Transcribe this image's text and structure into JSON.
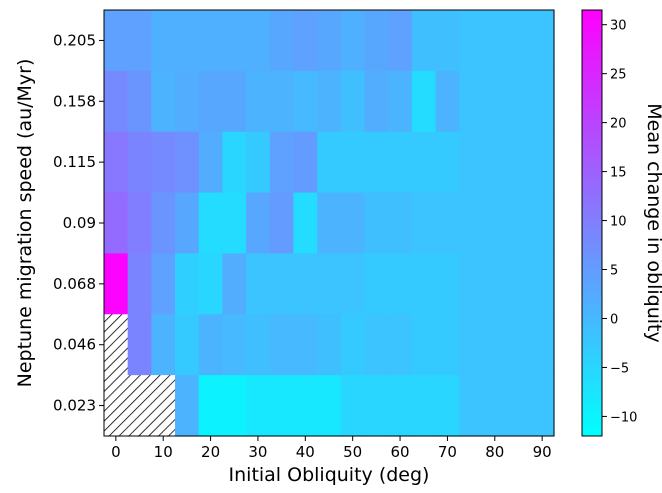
{
  "chart_data": {
    "type": "heatmap",
    "xlabel": "Initial Obliquity (deg)",
    "ylabel": "Neptune migration speed (au/Myr)",
    "colorbar_label": "Mean change in obliquity",
    "x": [
      0,
      5,
      10,
      15,
      20,
      25,
      30,
      35,
      40,
      45,
      50,
      55,
      60,
      65,
      70,
      75,
      80,
      85,
      90
    ],
    "y_rows": [
      "0.205",
      "0.158",
      "0.115",
      "0.09",
      "0.068",
      "0.046",
      "0.023"
    ],
    "xticks": [
      "0",
      "10",
      "20",
      "30",
      "40",
      "50",
      "60",
      "70",
      "80",
      "90"
    ],
    "yticks": [
      "0.205",
      "0.158",
      "0.115",
      "0.09",
      "0.068",
      "0.046",
      "0.023"
    ],
    "colorbar_ticks": [
      "30",
      "25",
      "20",
      "15",
      "10",
      "5",
      "0",
      "−5",
      "−10"
    ],
    "colorbar_range": [
      -12,
      31.5
    ],
    "colormap": {
      "low": "#00ffff",
      "high": "#ff00ff"
    },
    "hatched_region": "no data",
    "values": [
      [
        4,
        4,
        1.5,
        1.5,
        1.5,
        1.5,
        1.5,
        3,
        4,
        3,
        1.5,
        3,
        4,
        -1,
        -1,
        -2,
        -2,
        -2,
        -2
      ],
      [
        8,
        6,
        1,
        2,
        3,
        3,
        1,
        1,
        0,
        1,
        -1,
        2,
        1,
        -6,
        1,
        -2,
        -2,
        -2,
        -2
      ],
      [
        11,
        9,
        8,
        7,
        2,
        -5,
        -3,
        4,
        5,
        -3,
        -3,
        -3,
        -3,
        -3,
        -3,
        -2,
        -2,
        -2,
        -2
      ],
      [
        13,
        10,
        6,
        3,
        -6,
        -6,
        3,
        5,
        -6,
        1,
        1,
        -1,
        -1,
        -2,
        -2,
        -2,
        -2,
        -2,
        -2
      ],
      [
        31,
        9,
        4,
        -4,
        -5,
        2,
        -2,
        -2,
        -2,
        -2,
        -2,
        -3,
        -3,
        -3,
        -3,
        -2,
        -2,
        -2,
        -2
      ],
      [
        null,
        9,
        1,
        -3,
        1,
        0,
        -1,
        0,
        0,
        -1,
        -3,
        -2,
        -2,
        -3,
        -3,
        -2,
        -2,
        -2,
        -2
      ],
      [
        null,
        null,
        null,
        1,
        -10,
        -10,
        -8,
        -8,
        -8,
        -8,
        -5,
        -5,
        -5,
        -5,
        -5,
        -2,
        -2,
        -2,
        -2
      ]
    ]
  }
}
